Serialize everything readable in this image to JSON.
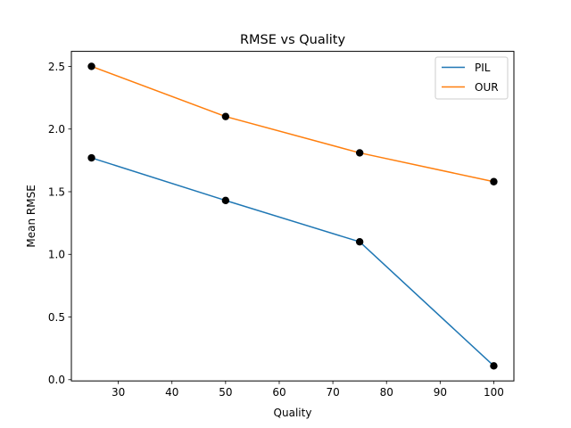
{
  "chart_data": {
    "type": "line",
    "title": "RMSE vs Quality",
    "xlabel": "Quality",
    "ylabel": "Mean RMSE",
    "x": [
      25,
      50,
      75,
      100
    ],
    "xlim": [
      21.25,
      103.75
    ],
    "ylim": [
      -0.01,
      2.62
    ],
    "xticks": [
      30,
      40,
      50,
      60,
      70,
      80,
      90,
      100
    ],
    "yticks": [
      0.0,
      0.5,
      1.0,
      1.5,
      2.0,
      2.5
    ],
    "grid": false,
    "legend_position": "top-right",
    "marker_color": "#000000",
    "series": [
      {
        "name": "PIL",
        "color": "#1f77b4",
        "values": [
          1.77,
          1.43,
          1.1,
          0.11
        ]
      },
      {
        "name": "OUR",
        "color": "#ff7f0e",
        "values": [
          2.5,
          2.1,
          1.81,
          1.58
        ]
      }
    ]
  }
}
